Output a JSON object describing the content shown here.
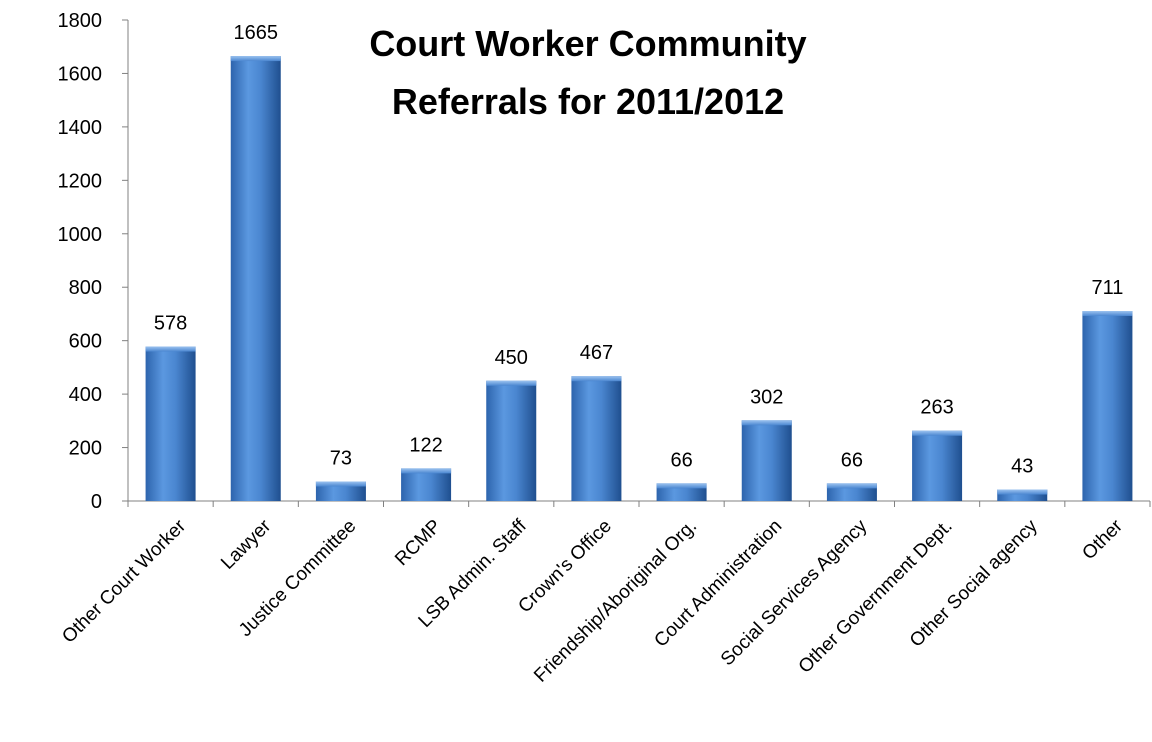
{
  "chart_data": {
    "type": "bar",
    "title_lines": [
      "Court Worker Community",
      "Referrals for 2011/2012"
    ],
    "categories": [
      "Other Court Worker",
      "Lawyer",
      "Justice Committee",
      "RCMP",
      "LSB Admin. Staff",
      "Crown's Office",
      "Friendship/Aboriginal Org.",
      "Court Administration",
      "Social Services Agency",
      "Other Government Dept.",
      "Other Social agency",
      "Other"
    ],
    "values": [
      578,
      1665,
      73,
      122,
      450,
      467,
      66,
      302,
      66,
      263,
      43,
      711
    ],
    "ylim": [
      0,
      1800
    ],
    "yticks": [
      "0",
      "200",
      "400",
      "600",
      "800",
      "1000",
      "1200",
      "1400",
      "1600",
      "1800"
    ],
    "ytick_values": [
      0,
      200,
      400,
      600,
      800,
      1000,
      1200,
      1400,
      1600,
      1800
    ],
    "grid": false,
    "legend": "none",
    "bar_color": "#4a86d0",
    "bar_color_dark": "#1f4f8f"
  }
}
